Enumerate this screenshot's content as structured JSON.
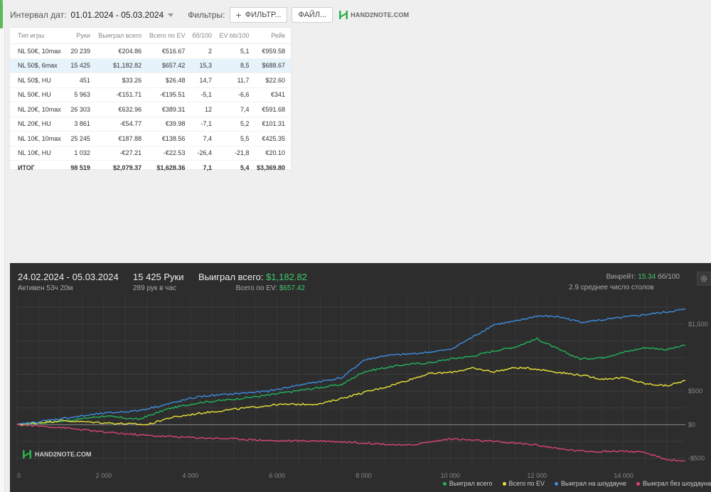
{
  "topbar": {
    "date_label": "Интервал дат:",
    "date_value": "01.01.2024 - 05.03.2024",
    "filters_label": "Фильтры:",
    "filter_button": "ФИЛЬТР...",
    "file_button": "ФАЙЛ...",
    "brand": "HAND2NOTE.COM"
  },
  "table": {
    "headers": [
      "Тип игры",
      "Руки",
      "Выиграл всего",
      "Всего по EV",
      "бб/100",
      "EV bb/100",
      "Рейк"
    ],
    "rows": [
      {
        "game": "NL 50€, 10max",
        "hands": "20 239",
        "won": "€204.86",
        "ev": "€516.67",
        "bb": "2",
        "evbb": "5,1",
        "rake": "€959.58",
        "selected": false
      },
      {
        "game": "NL 50$, 6max",
        "hands": "15 425",
        "won": "$1,182.82",
        "ev": "$657.42",
        "bb": "15,3",
        "evbb": "8,5",
        "rake": "$688.67",
        "selected": true
      },
      {
        "game": "NL 50$, HU",
        "hands": "451",
        "won": "$33.26",
        "ev": "$26.48",
        "bb": "14,7",
        "evbb": "11,7",
        "rake": "$22.60",
        "selected": false
      },
      {
        "game": "NL 50€, HU",
        "hands": "5 963",
        "won": "-€151.71",
        "ev": "-€195.51",
        "bb": "-5,1",
        "evbb": "-6,6",
        "rake": "€341",
        "selected": false
      },
      {
        "game": "NL 20€, 10max",
        "hands": "26 303",
        "won": "€632.96",
        "ev": "€389.31",
        "bb": "12",
        "evbb": "7,4",
        "rake": "€591.68",
        "selected": false
      },
      {
        "game": "NL 20€, HU",
        "hands": "3 861",
        "won": "-€54.77",
        "ev": "€39.98",
        "bb": "-7,1",
        "evbb": "5,2",
        "rake": "€101.31",
        "selected": false
      },
      {
        "game": "NL 10€, 10max",
        "hands": "25 245",
        "won": "€187.88",
        "ev": "€138.56",
        "bb": "7,4",
        "evbb": "5,5",
        "rake": "€425.35",
        "selected": false
      },
      {
        "game": "NL 10€, HU",
        "hands": "1 032",
        "won": "-€27.21",
        "ev": "-€22.53",
        "bb": "-26,4",
        "evbb": "-21,8",
        "rake": "€20.10",
        "selected": false
      }
    ],
    "total": {
      "game": "ИТОГ",
      "hands": "98 519",
      "won": "$2,079.37",
      "ev": "$1,628.36",
      "bb": "7,1",
      "evbb": "5,4",
      "rake": "$3,369.80"
    }
  },
  "panel": {
    "dates": "24.02.2024 - 05.03.2024",
    "active": "Активен 53ч 20м",
    "hands": "15 425 Руки",
    "hands_rate": "289 рук в час",
    "won_label": "Выиграл всего: ",
    "won_value": "$1,182.82",
    "ev_label": "Всего по EV: ",
    "ev_value": "$657.42",
    "winrate_label": "Винрейт: ",
    "winrate_value": "15.34",
    "winrate_unit": " бб/100",
    "tables": "2.9 среднее число столов",
    "watermark": "HAND2NOTE.COM"
  },
  "colors": {
    "won": "#22b35e",
    "ev": "#e8e23a",
    "showdown": "#3d8de0",
    "nonshowdown": "#d94475",
    "positive": "#3aa83a",
    "negative": "#e0462f"
  },
  "chart_data": {
    "type": "line",
    "x_ticks": [
      0,
      2000,
      4000,
      6000,
      8000,
      10000,
      12000,
      14000
    ],
    "x_tick_labels": [
      "0",
      "2 000",
      "4 000",
      "6 000",
      "8 000",
      "10 000",
      "12 000",
      "14 000"
    ],
    "y_ticks": [
      -500,
      0,
      500,
      1000,
      1500
    ],
    "y_tick_labels": [
      "-$500",
      "$0",
      "$500",
      "",
      "$1,500"
    ],
    "xlim": [
      0,
      15425
    ],
    "ylim": [
      -600,
      1900
    ],
    "grid": true,
    "legend": "bottom-right",
    "series": [
      {
        "name": "Выиграл всего",
        "color_key": "won",
        "x": [
          0,
          1000,
          2000,
          2800,
          3500,
          4200,
          5000,
          5800,
          6500,
          7500,
          8000,
          8500,
          9000,
          9500,
          10000,
          10500,
          11000,
          11500,
          12000,
          12500,
          13000,
          13500,
          14000,
          14500,
          15000,
          15425
        ],
        "y": [
          0,
          50,
          130,
          80,
          240,
          330,
          380,
          440,
          510,
          600,
          790,
          850,
          900,
          920,
          980,
          1020,
          1100,
          1160,
          1280,
          1120,
          980,
          1000,
          1080,
          1150,
          1120,
          1183
        ]
      },
      {
        "name": "Всего по EV",
        "color_key": "ev",
        "x": [
          0,
          1000,
          2000,
          3000,
          3500,
          4200,
          5000,
          6000,
          7000,
          8000,
          8500,
          9000,
          9500,
          10000,
          10500,
          11000,
          11500,
          12000,
          12500,
          13000,
          13500,
          14000,
          14500,
          15000,
          15425
        ],
        "y": [
          0,
          60,
          30,
          0,
          100,
          170,
          230,
          300,
          310,
          480,
          560,
          660,
          760,
          780,
          840,
          790,
          850,
          830,
          780,
          740,
          680,
          700,
          610,
          580,
          657
        ]
      },
      {
        "name": "Выиграл на шоудауне",
        "color_key": "showdown",
        "x": [
          0,
          1000,
          2000,
          2800,
          3500,
          4200,
          5000,
          5800,
          6500,
          7500,
          8000,
          8500,
          9000,
          9500,
          10000,
          10500,
          11000,
          11500,
          12000,
          12500,
          13000,
          13500,
          14000,
          14500,
          15000,
          15425
        ],
        "y": [
          0,
          90,
          170,
          210,
          310,
          420,
          460,
          500,
          590,
          700,
          960,
          1030,
          1050,
          1080,
          1120,
          1300,
          1490,
          1540,
          1620,
          1610,
          1530,
          1560,
          1600,
          1640,
          1680,
          1720
        ]
      },
      {
        "name": "Выиграл без шоудауна",
        "color_key": "nonshowdown",
        "x": [
          0,
          1000,
          2000,
          3000,
          4000,
          5000,
          6000,
          7000,
          8000,
          9000,
          10000,
          11000,
          12000,
          12500,
          13000,
          13500,
          14000,
          14500,
          15000,
          15425
        ],
        "y": [
          0,
          -40,
          -110,
          -160,
          -190,
          -210,
          -240,
          -240,
          -270,
          -310,
          -210,
          -250,
          -300,
          -360,
          -390,
          -400,
          -390,
          -420,
          -520,
          -540
        ]
      }
    ]
  }
}
